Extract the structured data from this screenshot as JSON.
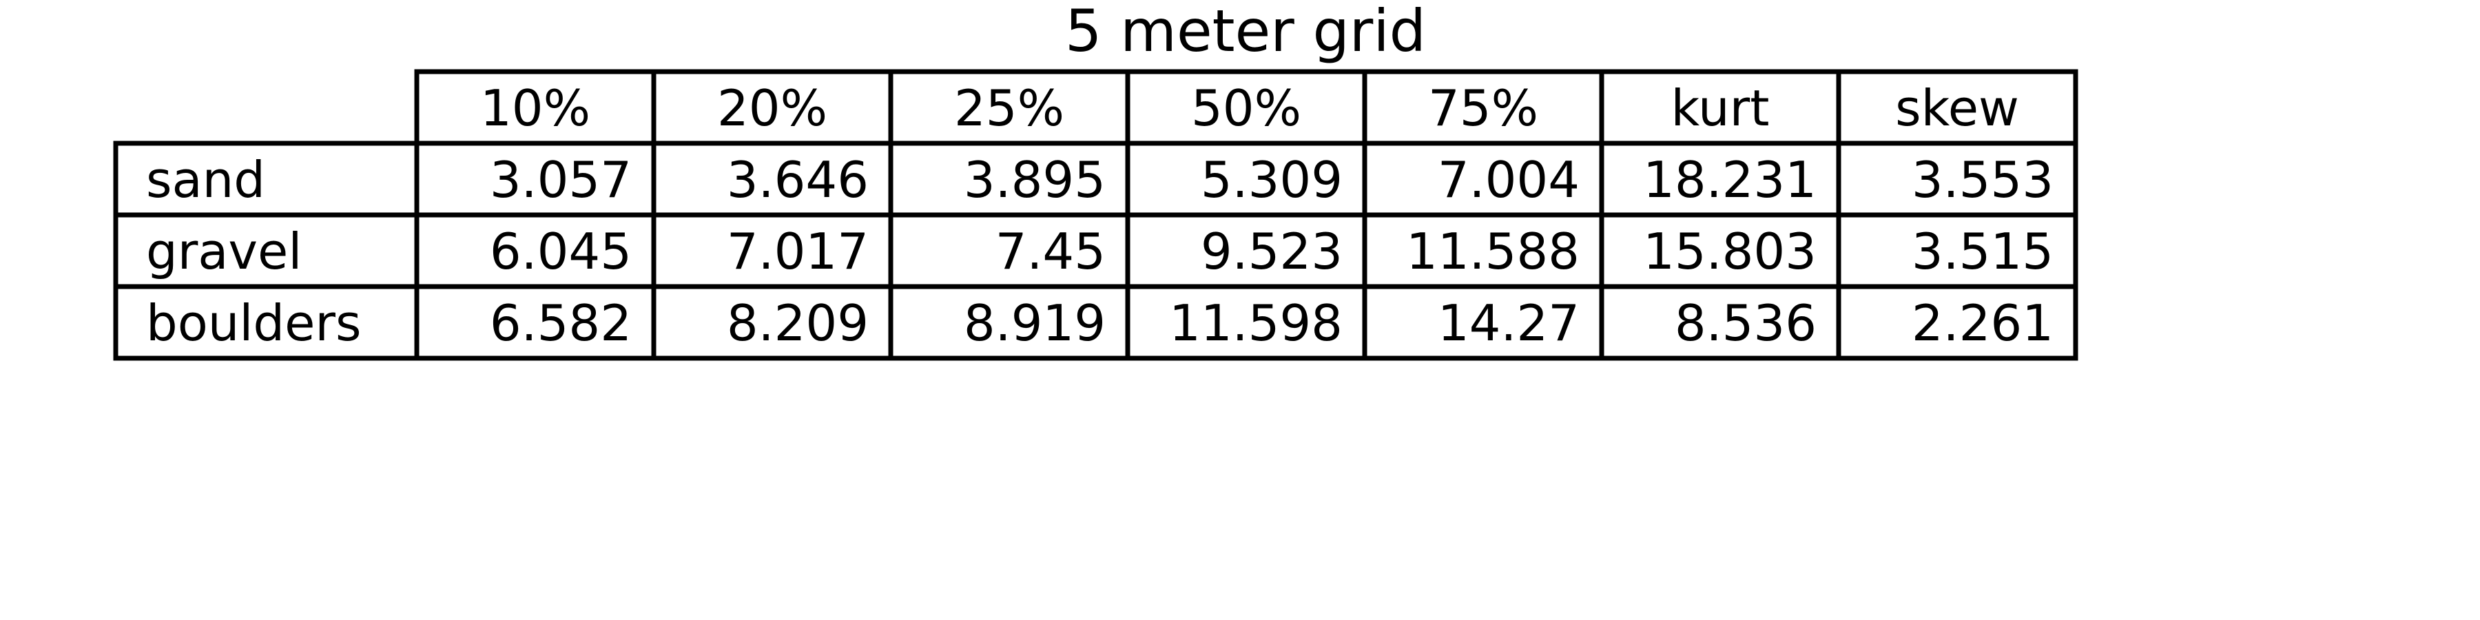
{
  "chart_data": {
    "type": "table",
    "title": "5 meter grid",
    "columns": [
      "10%",
      "20%",
      "25%",
      "50%",
      "75%",
      "kurt",
      "skew"
    ],
    "rows": [
      {
        "label": "sand",
        "values": [
          "3.057",
          "3.646",
          "3.895",
          "5.309",
          "7.004",
          "18.231",
          "3.553"
        ]
      },
      {
        "label": "gravel",
        "values": [
          "6.045",
          "7.017",
          "7.45",
          "9.523",
          "11.588",
          "15.803",
          "3.515"
        ]
      },
      {
        "label": "boulders",
        "values": [
          "6.582",
          "8.209",
          "8.919",
          "11.598",
          "14.27",
          "8.536",
          "2.261"
        ]
      }
    ],
    "colors": {
      "text": "#000000",
      "border": "#000000",
      "background": "#ffffff"
    }
  }
}
